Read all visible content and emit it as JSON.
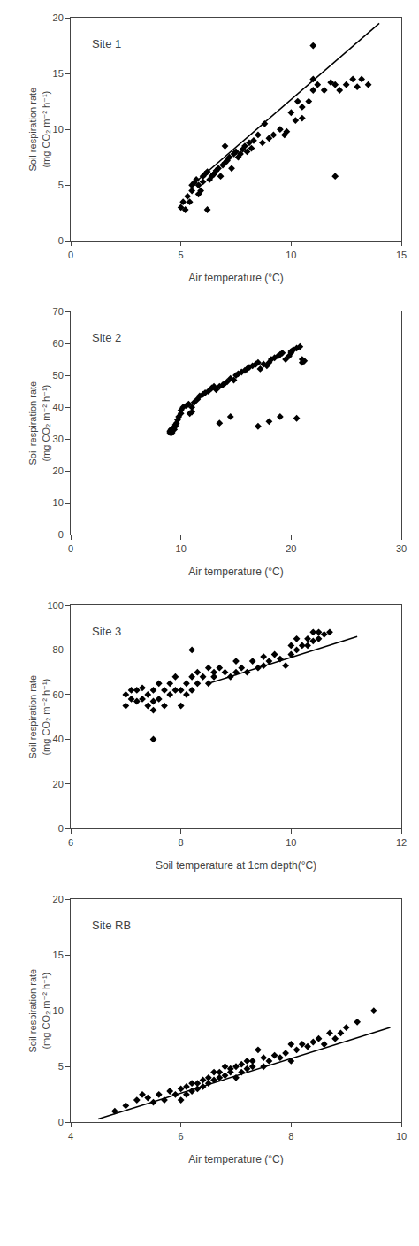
{
  "chart_data": [
    {
      "type": "scatter",
      "title": "Site 1",
      "xlabel": "Air temperature (°C)",
      "ylabel": "Soil respiration rate\n(mg CO₂ m⁻² h⁻¹)",
      "xlim": [
        0,
        15
      ],
      "ylim": [
        0,
        20
      ],
      "xticks": [
        0,
        5,
        10,
        15
      ],
      "yticks": [
        0,
        5,
        10,
        15,
        20
      ],
      "grid": false,
      "series": [
        {
          "type": "scatter",
          "marker": "diamond",
          "color": "black",
          "x": [
            5.0,
            5.1,
            5.2,
            5.3,
            5.4,
            5.5,
            5.5,
            5.6,
            5.7,
            5.8,
            5.9,
            6.0,
            6.0,
            6.1,
            6.2,
            6.3,
            6.4,
            6.5,
            6.6,
            6.7,
            6.8,
            6.9,
            7.0,
            7.1,
            7.2,
            7.3,
            7.4,
            7.5,
            7.6,
            7.7,
            7.8,
            7.9,
            8.0,
            8.1,
            8.2,
            8.3,
            8.5,
            8.7,
            9.0,
            9.2,
            9.5,
            9.7,
            10.0,
            10.2,
            10.5,
            10.8,
            11.0,
            11.2,
            11.5,
            11.8,
            12.0,
            12.2,
            12.5,
            12.8,
            13.0,
            13.2,
            13.5,
            6.5,
            7.0,
            8.8,
            9.8,
            10.3,
            10.5,
            11.0,
            11.0,
            12.0,
            5.8,
            6.2
          ],
          "values": [
            3.0,
            3.5,
            2.8,
            4.0,
            3.5,
            4.5,
            5.0,
            5.2,
            5.5,
            5.0,
            4.5,
            5.3,
            5.8,
            6.0,
            6.2,
            5.5,
            5.8,
            6.0,
            6.3,
            6.5,
            5.8,
            6.8,
            7.0,
            7.2,
            7.5,
            6.5,
            7.8,
            8.0,
            7.5,
            7.8,
            8.2,
            8.5,
            8.0,
            8.8,
            8.3,
            9.0,
            9.5,
            8.8,
            9.2,
            9.5,
            10.0,
            9.5,
            11.5,
            10.8,
            12.0,
            12.5,
            13.5,
            14.0,
            13.5,
            14.2,
            14.0,
            13.5,
            14.0,
            14.5,
            13.8,
            14.5,
            14.0,
            6.0,
            8.5,
            10.5,
            9.8,
            12.5,
            11.0,
            17.5,
            14.5,
            5.8,
            4.2,
            2.8
          ]
        },
        {
          "type": "line",
          "color": "black",
          "x": [
            5.5,
            14.0
          ],
          "values": [
            5.0,
            19.5
          ]
        }
      ]
    },
    {
      "type": "scatter",
      "title": "Site 2",
      "xlabel": "Air temperature (°C)",
      "ylabel": "Soil respiration rate\n(mg CO₂ m⁻² h⁻¹)",
      "xlim": [
        0,
        30
      ],
      "ylim": [
        0,
        70
      ],
      "xticks": [
        0,
        10,
        20,
        30
      ],
      "yticks": [
        0,
        10,
        20,
        30,
        40,
        50,
        60,
        70
      ],
      "grid": false,
      "series": [
        {
          "type": "scatter",
          "marker": "diamond",
          "color": "black",
          "x": [
            9.0,
            9.0,
            9.1,
            9.2,
            9.3,
            9.4,
            9.5,
            9.5,
            9.6,
            9.7,
            9.8,
            10.0,
            10.0,
            10.2,
            10.5,
            10.7,
            10.8,
            11.0,
            11.0,
            11.2,
            11.5,
            11.7,
            12.0,
            12.2,
            12.5,
            12.8,
            13.0,
            13.2,
            13.5,
            13.8,
            14.0,
            14.2,
            14.5,
            14.8,
            15.0,
            15.2,
            15.5,
            15.8,
            16.0,
            16.2,
            16.5,
            16.8,
            17.0,
            17.2,
            17.5,
            17.8,
            18.0,
            18.2,
            18.5,
            18.8,
            19.0,
            19.2,
            19.5,
            19.8,
            20.0,
            20.0,
            20.2,
            20.5,
            20.8,
            21.0,
            21.0,
            21.2,
            13.5,
            14.5,
            17.0,
            18.0,
            19.0,
            20.5
          ],
          "values": [
            32.0,
            32.5,
            33.0,
            32.0,
            33.5,
            33.0,
            34.0,
            34.5,
            35.0,
            36.0,
            37.0,
            38.0,
            39.0,
            40.0,
            40.5,
            41.0,
            38.0,
            38.5,
            40.0,
            41.5,
            42.5,
            43.5,
            44.0,
            44.5,
            45.0,
            46.0,
            46.5,
            45.5,
            46.5,
            47.0,
            47.5,
            48.0,
            49.0,
            48.5,
            50.0,
            50.5,
            51.0,
            51.5,
            52.0,
            52.5,
            53.0,
            53.5,
            54.0,
            52.0,
            53.5,
            53.0,
            54.0,
            55.0,
            55.5,
            56.0,
            56.5,
            57.0,
            55.0,
            56.0,
            57.0,
            57.5,
            58.0,
            58.5,
            59.0,
            54.0,
            55.0,
            54.5,
            35.0,
            37.0,
            34.0,
            35.5,
            37.0,
            36.5
          ]
        }
      ]
    },
    {
      "type": "scatter",
      "title": "Site 3",
      "xlabel": "Soil temperature at 1cm depth(°C)",
      "ylabel": "Soil respiration rate\n(mg CO₂ m⁻² h⁻¹)",
      "xlim": [
        6,
        12
      ],
      "ylim": [
        0,
        100
      ],
      "xticks": [
        6,
        8,
        10,
        12
      ],
      "yticks": [
        0,
        20,
        40,
        60,
        80,
        100
      ],
      "grid": false,
      "series": [
        {
          "type": "scatter",
          "marker": "diamond",
          "color": "black",
          "x": [
            7.0,
            7.0,
            7.1,
            7.1,
            7.2,
            7.2,
            7.3,
            7.3,
            7.4,
            7.4,
            7.5,
            7.5,
            7.5,
            7.6,
            7.6,
            7.7,
            7.7,
            7.8,
            7.8,
            7.9,
            7.9,
            8.0,
            8.0,
            8.1,
            8.1,
            8.2,
            8.2,
            8.3,
            8.3,
            8.4,
            8.5,
            8.5,
            8.6,
            8.6,
            8.7,
            8.8,
            8.9,
            9.0,
            9.0,
            9.1,
            9.2,
            9.3,
            9.4,
            9.5,
            9.5,
            9.6,
            9.7,
            9.8,
            9.9,
            10.0,
            10.0,
            10.1,
            10.1,
            10.2,
            10.3,
            10.3,
            10.4,
            10.4,
            10.5,
            10.5,
            10.6,
            10.7,
            7.5,
            8.2
          ],
          "values": [
            55.0,
            60.0,
            58.0,
            62.0,
            57.0,
            62.0,
            58.0,
            63.0,
            55.0,
            60.0,
            53.0,
            57.0,
            62.0,
            58.0,
            65.0,
            55.0,
            62.0,
            60.0,
            65.0,
            62.0,
            68.0,
            55.0,
            62.0,
            60.0,
            65.0,
            62.0,
            68.0,
            65.0,
            70.0,
            68.0,
            65.0,
            72.0,
            70.0,
            68.0,
            72.0,
            70.0,
            68.0,
            70.0,
            75.0,
            72.0,
            70.0,
            75.0,
            72.0,
            73.0,
            77.0,
            75.0,
            78.0,
            76.0,
            73.0,
            78.0,
            82.0,
            80.0,
            85.0,
            82.0,
            82.0,
            85.0,
            88.0,
            84.0,
            88.0,
            85.0,
            87.0,
            88.0,
            40.0,
            80.0
          ]
        },
        {
          "type": "line",
          "color": "black",
          "x": [
            8.5,
            11.2
          ],
          "values": [
            65.0,
            86.0
          ]
        }
      ]
    },
    {
      "type": "scatter",
      "title": "Site RB",
      "xlabel": "Air temperature (°C)",
      "ylabel": "Soil respiration rate\n(mg CO₂ m⁻² h⁻¹)",
      "xlim": [
        4,
        10
      ],
      "ylim": [
        0,
        20
      ],
      "xticks": [
        4,
        6,
        8,
        10
      ],
      "yticks": [
        0,
        5,
        10,
        15,
        20
      ],
      "grid": false,
      "series": [
        {
          "type": "scatter",
          "marker": "diamond",
          "color": "black",
          "x": [
            4.8,
            5.0,
            5.2,
            5.3,
            5.4,
            5.5,
            5.6,
            5.7,
            5.8,
            5.9,
            6.0,
            6.0,
            6.1,
            6.1,
            6.2,
            6.2,
            6.3,
            6.3,
            6.4,
            6.4,
            6.5,
            6.5,
            6.6,
            6.6,
            6.7,
            6.7,
            6.8,
            6.8,
            6.9,
            6.9,
            7.0,
            7.0,
            7.1,
            7.1,
            7.2,
            7.2,
            7.3,
            7.3,
            7.5,
            7.5,
            7.6,
            7.7,
            7.8,
            7.9,
            8.0,
            8.0,
            8.1,
            8.2,
            8.3,
            8.5,
            8.6,
            8.7,
            8.8,
            9.0,
            9.2,
            9.5,
            8.4,
            8.9,
            7.4
          ],
          "values": [
            1.0,
            1.5,
            2.0,
            2.5,
            2.2,
            1.8,
            2.5,
            2.0,
            2.8,
            2.5,
            2.0,
            3.0,
            2.5,
            3.2,
            2.8,
            3.5,
            3.0,
            3.5,
            3.2,
            3.8,
            3.5,
            4.0,
            3.8,
            4.5,
            4.0,
            4.5,
            4.2,
            5.0,
            4.5,
            4.8,
            4.0,
            5.0,
            4.5,
            5.2,
            4.8,
            5.5,
            5.0,
            5.5,
            5.0,
            5.8,
            5.5,
            6.0,
            5.8,
            6.2,
            5.5,
            7.0,
            6.5,
            7.0,
            6.8,
            7.5,
            7.0,
            8.0,
            7.5,
            8.5,
            9.0,
            10.0,
            7.2,
            8.0,
            6.5
          ]
        },
        {
          "type": "line",
          "color": "black",
          "x": [
            4.5,
            9.8
          ],
          "values": [
            0.3,
            8.5
          ]
        }
      ]
    }
  ]
}
